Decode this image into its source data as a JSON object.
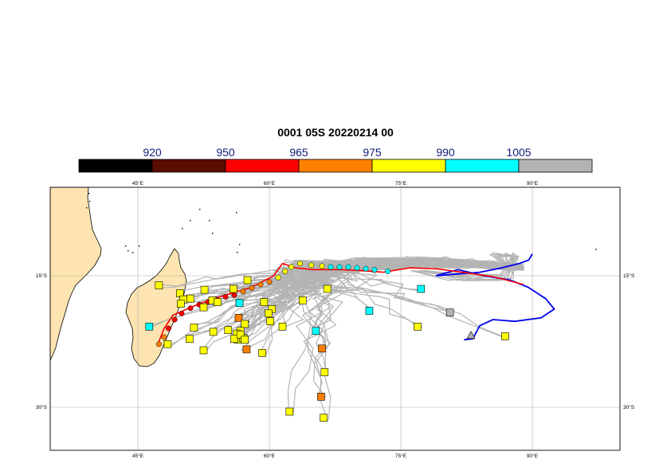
{
  "title": "0001 05S 20220214 00",
  "colorbar": {
    "labels": [
      "920",
      "950",
      "965",
      "975",
      "990",
      "1005"
    ],
    "colors": [
      "#000000",
      "#5a0e00",
      "#ff0000",
      "#ff7f00",
      "#ffff00",
      "#00ffff",
      "#b3b3b3"
    ]
  },
  "axes": {
    "lon_ticks": [
      "45°E",
      "60°E",
      "75°E",
      "90°E"
    ],
    "lat_ticks": [
      "15°S",
      "30°S"
    ],
    "lon_range": [
      35,
      101
    ],
    "lat_range": [
      -35,
      -5
    ]
  },
  "colors": {
    "land": "#fde4b0",
    "ensemble": "#b4b4b4",
    "observed": "#0000ee",
    "forecast": "#ff0000",
    "grid": "#aaaaaa"
  },
  "tracks": {
    "observed_lonlat": [
      [
        90.0,
        -12.5
      ],
      [
        89.6,
        -13.2
      ],
      [
        88.5,
        -13.6
      ],
      [
        86.5,
        -14.1
      ],
      [
        84.0,
        -14.6
      ],
      [
        81.5,
        -14.8
      ],
      [
        79.0,
        -15.0
      ],
      [
        81.5,
        -14.3
      ],
      [
        84.5,
        -15.0
      ],
      [
        87.5,
        -15.5
      ],
      [
        89.5,
        -16.3
      ],
      [
        91.5,
        -17.6
      ],
      [
        92.5,
        -18.8
      ],
      [
        91.0,
        -19.8
      ],
      [
        88.0,
        -20.2
      ],
      [
        85.5,
        -20.0
      ],
      [
        84.0,
        -20.7
      ],
      [
        83.2,
        -22.2
      ],
      [
        82.2,
        -22.3
      ]
    ],
    "forecast_lonlat": [
      [
        89.0,
        -16.0
      ],
      [
        85.5,
        -15.1
      ],
      [
        82.0,
        -14.6
      ],
      [
        79.0,
        -14.2
      ],
      [
        76.0,
        -14.1
      ],
      [
        73.0,
        -14.6
      ],
      [
        70.5,
        -14.4
      ],
      [
        68.0,
        -14.3
      ],
      [
        65.0,
        -14.3
      ],
      [
        63.0,
        -14.1
      ],
      [
        61.5,
        -13.6
      ],
      [
        60.5,
        -15.0
      ],
      [
        58.0,
        -16.3
      ],
      [
        55.0,
        -17.2
      ],
      [
        52.0,
        -18.2
      ],
      [
        49.0,
        -19.5
      ],
      [
        48.0,
        -21.0
      ],
      [
        47.2,
        -23.0
      ]
    ],
    "intensity_points": [
      {
        "lon": 73.5,
        "lat": -14.5,
        "band": 5
      },
      {
        "lon": 72.0,
        "lat": -14.3,
        "band": 5
      },
      {
        "lon": 71.0,
        "lat": -14.2,
        "band": 5
      },
      {
        "lon": 70.0,
        "lat": -14.1,
        "band": 5
      },
      {
        "lon": 69.0,
        "lat": -14.0,
        "band": 5
      },
      {
        "lon": 68.0,
        "lat": -14.0,
        "band": 5
      },
      {
        "lon": 67.0,
        "lat": -14.0,
        "band": 5
      },
      {
        "lon": 66.0,
        "lat": -13.9,
        "band": 4
      },
      {
        "lon": 64.8,
        "lat": -13.8,
        "band": 4
      },
      {
        "lon": 63.5,
        "lat": -13.6,
        "band": 4
      },
      {
        "lon": 62.5,
        "lat": -14.0,
        "band": 4
      },
      {
        "lon": 61.8,
        "lat": -14.5,
        "band": 4
      },
      {
        "lon": 61.0,
        "lat": -15.2,
        "band": 4
      },
      {
        "lon": 60.0,
        "lat": -15.7,
        "band": 3
      },
      {
        "lon": 59.0,
        "lat": -16.0,
        "band": 3
      },
      {
        "lon": 58.0,
        "lat": -16.4,
        "band": 3
      },
      {
        "lon": 57.0,
        "lat": -16.8,
        "band": 3
      },
      {
        "lon": 56.0,
        "lat": -17.2,
        "band": 2
      },
      {
        "lon": 55.0,
        "lat": -17.4,
        "band": 2
      },
      {
        "lon": 54.0,
        "lat": -17.7,
        "band": 2
      },
      {
        "lon": 53.0,
        "lat": -18.0,
        "band": 2
      },
      {
        "lon": 52.0,
        "lat": -18.3,
        "band": 2
      },
      {
        "lon": 51.0,
        "lat": -18.7,
        "band": 2
      },
      {
        "lon": 50.0,
        "lat": -19.3,
        "band": 2
      },
      {
        "lon": 49.2,
        "lat": -20.0,
        "band": 2
      },
      {
        "lon": 48.5,
        "lat": -21.0,
        "band": 2
      },
      {
        "lon": 48.0,
        "lat": -22.0,
        "band": 3
      },
      {
        "lon": 47.4,
        "lat": -22.8,
        "band": 3
      }
    ],
    "current_position": {
      "lon": 83.0,
      "lat": -21.8,
      "band": 6
    }
  },
  "ensemble_endpoints": [
    {
      "lon": 47.4,
      "lat": -16.1,
      "band": 4
    },
    {
      "lon": 49.8,
      "lat": -17.0,
      "band": 4
    },
    {
      "lon": 50.2,
      "lat": -17.7,
      "band": 4
    },
    {
      "lon": 51.0,
      "lat": -17.6,
      "band": 4
    },
    {
      "lon": 49.9,
      "lat": -18.2,
      "band": 4
    },
    {
      "lon": 52.6,
      "lat": -16.6,
      "band": 4
    },
    {
      "lon": 53.5,
      "lat": -17.8,
      "band": 4
    },
    {
      "lon": 52.5,
      "lat": -18.6,
      "band": 4
    },
    {
      "lon": 54.1,
      "lat": -18.0,
      "band": 4
    },
    {
      "lon": 55.9,
      "lat": -16.5,
      "band": 4
    },
    {
      "lon": 57.5,
      "lat": -15.5,
      "band": 4
    },
    {
      "lon": 56.6,
      "lat": -18.1,
      "band": 5
    },
    {
      "lon": 59.4,
      "lat": -18.0,
      "band": 4
    },
    {
      "lon": 56.5,
      "lat": -19.8,
      "band": 3
    },
    {
      "lon": 60.3,
      "lat": -18.8,
      "band": 4
    },
    {
      "lon": 59.9,
      "lat": -19.3,
      "band": 4
    },
    {
      "lon": 60.1,
      "lat": -20.2,
      "band": 4
    },
    {
      "lon": 57.2,
      "lat": -20.5,
      "band": 4
    },
    {
      "lon": 56.7,
      "lat": -21.3,
      "band": 4
    },
    {
      "lon": 56.3,
      "lat": -21.6,
      "band": 4
    },
    {
      "lon": 55.3,
      "lat": -21.2,
      "band": 4
    },
    {
      "lon": 56.4,
      "lat": -22.3,
      "band": 4
    },
    {
      "lon": 56.0,
      "lat": -22.2,
      "band": 4
    },
    {
      "lon": 57.0,
      "lat": -22.1,
      "band": 4
    },
    {
      "lon": 56.7,
      "lat": -21.7,
      "band": 4
    },
    {
      "lon": 57.2,
      "lat": -22.3,
      "band": 4
    },
    {
      "lon": 51.4,
      "lat": -20.9,
      "band": 4
    },
    {
      "lon": 53.6,
      "lat": -21.4,
      "band": 4
    },
    {
      "lon": 50.9,
      "lat": -22.2,
      "band": 4
    },
    {
      "lon": 48.4,
      "lat": -22.8,
      "band": 4
    },
    {
      "lon": 52.5,
      "lat": -23.5,
      "band": 4
    },
    {
      "lon": 57.4,
      "lat": -23.4,
      "band": 3
    },
    {
      "lon": 59.2,
      "lat": -23.8,
      "band": 4
    },
    {
      "lon": 46.3,
      "lat": -20.8,
      "band": 5
    },
    {
      "lon": 61.5,
      "lat": -20.8,
      "band": 4
    },
    {
      "lon": 63.8,
      "lat": -17.8,
      "band": 4
    },
    {
      "lon": 66.6,
      "lat": -16.5,
      "band": 4
    },
    {
      "lon": 65.3,
      "lat": -21.3,
      "band": 5
    },
    {
      "lon": 71.4,
      "lat": -19.0,
      "band": 5
    },
    {
      "lon": 77.3,
      "lat": -16.5,
      "band": 5
    },
    {
      "lon": 76.9,
      "lat": -20.8,
      "band": 4
    },
    {
      "lon": 66.0,
      "lat": -23.3,
      "band": 3
    },
    {
      "lon": 66.3,
      "lat": -26.0,
      "band": 4
    },
    {
      "lon": 65.9,
      "lat": -28.8,
      "band": 3
    },
    {
      "lon": 62.3,
      "lat": -30.5,
      "band": 4
    },
    {
      "lon": 66.2,
      "lat": -31.2,
      "band": 4
    },
    {
      "lon": 80.6,
      "lat": -19.2,
      "band": 6
    },
    {
      "lon": 86.9,
      "lat": -21.9,
      "band": 4
    }
  ]
}
